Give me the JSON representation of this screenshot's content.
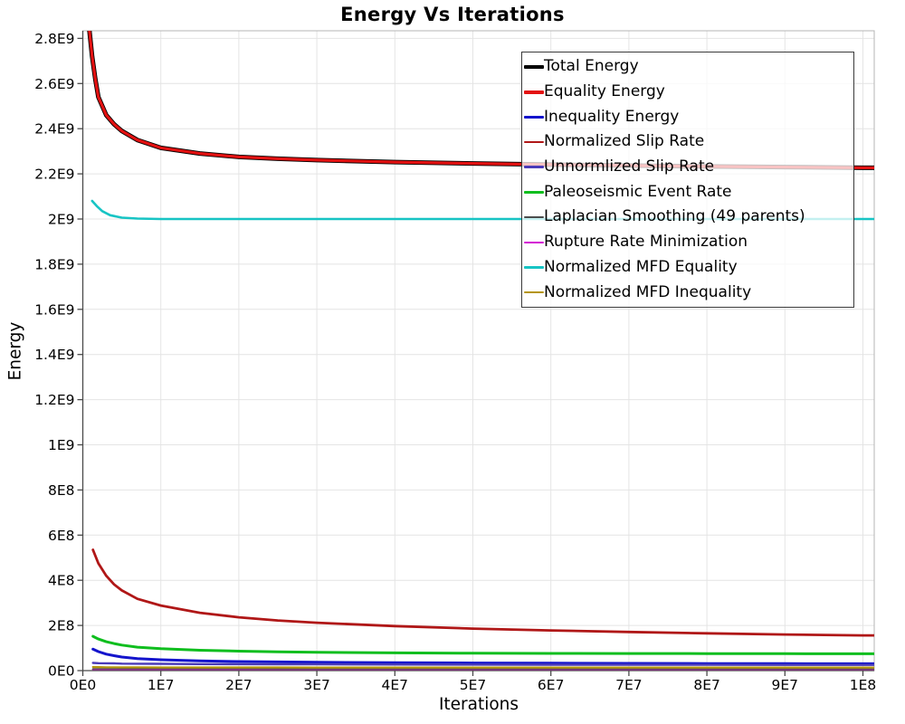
{
  "title": "Energy Vs Iterations",
  "axes": {
    "x_label": "Iterations",
    "y_label": "Energy"
  },
  "colors": {
    "background": "#ffffff",
    "grid": "#e4e4e4",
    "plot_border": "#b5b5b5",
    "axis_line": "#4a4a4a",
    "tick": "#4a4a4a",
    "text": "#000000",
    "legend_border": "#3a3a3a"
  },
  "chart_data": {
    "type": "line",
    "title": "Energy Vs Iterations",
    "xlabel": "Iterations",
    "ylabel": "Energy",
    "xlim": [
      0,
      101500000
    ],
    "ylim": [
      0,
      2830000000
    ],
    "grid": true,
    "legend_position": "top-right",
    "x_ticks": [
      {
        "label": "0E0",
        "value": 0
      },
      {
        "label": "1E7",
        "value": 10000000
      },
      {
        "label": "2E7",
        "value": 20000000
      },
      {
        "label": "3E7",
        "value": 30000000
      },
      {
        "label": "4E7",
        "value": 40000000
      },
      {
        "label": "5E7",
        "value": 50000000
      },
      {
        "label": "6E7",
        "value": 60000000
      },
      {
        "label": "7E7",
        "value": 70000000
      },
      {
        "label": "8E7",
        "value": 80000000
      },
      {
        "label": "9E7",
        "value": 90000000
      },
      {
        "label": "1E8",
        "value": 100000000
      }
    ],
    "y_ticks": [
      {
        "label": "0E0",
        "value": 0
      },
      {
        "label": "2E8",
        "value": 200000000
      },
      {
        "label": "4E8",
        "value": 400000000
      },
      {
        "label": "6E8",
        "value": 600000000
      },
      {
        "label": "8E8",
        "value": 800000000
      },
      {
        "label": "1E9",
        "value": 1000000000
      },
      {
        "label": "1.2E9",
        "value": 1200000000
      },
      {
        "label": "1.4E9",
        "value": 1400000000
      },
      {
        "label": "1.6E9",
        "value": 1600000000
      },
      {
        "label": "1.8E9",
        "value": 1800000000
      },
      {
        "label": "2E9",
        "value": 2000000000
      },
      {
        "label": "2.2E9",
        "value": 2200000000
      },
      {
        "label": "2.4E9",
        "value": 2400000000
      },
      {
        "label": "2.6E9",
        "value": 2600000000
      },
      {
        "label": "2.8E9",
        "value": 2800000000
      }
    ],
    "series": [
      {
        "name": "Total Energy",
        "color": "#000000",
        "width": 5,
        "swatch_height": 4.5,
        "x": [
          500000.0,
          800000.0,
          1200000.0,
          1600000.0,
          2000000.0,
          3000000.0,
          4000000.0,
          5000000.0,
          7000000.0,
          10000000.0,
          15000000.0,
          20000000.0,
          25000000.0,
          30000000.0,
          40000000.0,
          50000000.0,
          60000000.0,
          70000000.0,
          80000000.0,
          90000000.0,
          100000000.0,
          101500000.0
        ],
        "y": [
          2950000000.0,
          2850000000.0,
          2720000000.0,
          2620000000.0,
          2540000000.0,
          2460000000.0,
          2420000000.0,
          2390000000.0,
          2350000000.0,
          2315000000.0,
          2290000000.0,
          2275000000.0,
          2267000000.0,
          2261000000.0,
          2252000000.0,
          2246000000.0,
          2241000000.0,
          2237000000.0,
          2233000000.0,
          2230000000.0,
          2227000000.0,
          2227000000.0
        ]
      },
      {
        "name": "Equality Energy",
        "color": "#e31111",
        "width": 3.2,
        "swatch_height": 4,
        "x": [
          500000.0,
          800000.0,
          1200000.0,
          1600000.0,
          2000000.0,
          3000000.0,
          4000000.0,
          5000000.0,
          7000000.0,
          10000000.0,
          15000000.0,
          20000000.0,
          25000000.0,
          30000000.0,
          40000000.0,
          50000000.0,
          60000000.0,
          70000000.0,
          80000000.0,
          90000000.0,
          100000000.0,
          101500000.0
        ],
        "y": [
          2950000000.0,
          2850000000.0,
          2720000000.0,
          2620000000.0,
          2540000000.0,
          2460000000.0,
          2420000000.0,
          2390000000.0,
          2350000000.0,
          2315000000.0,
          2290000000.0,
          2275000000.0,
          2267000000.0,
          2261000000.0,
          2252000000.0,
          2246000000.0,
          2241000000.0,
          2237000000.0,
          2233000000.0,
          2230000000.0,
          2227000000.0,
          2227000000.0
        ]
      },
      {
        "name": "Inequality Energy",
        "color": "#1414cc",
        "width": 3,
        "swatch_height": 3,
        "x": [
          1300000.0,
          2000000.0,
          3000000.0,
          4000000.0,
          5000000.0,
          7000000.0,
          10000000.0,
          15000000.0,
          20000000.0,
          25000000.0,
          30000000.0,
          40000000.0,
          50000000.0,
          60000000.0,
          70000000.0,
          80000000.0,
          90000000.0,
          100000000.0,
          101500000.0
        ],
        "y": [
          95000000.0,
          84000000.0,
          73000000.0,
          66000000.0,
          60000000.0,
          53000000.0,
          48000000.0,
          43000000.0,
          40000000.0,
          38500000.0,
          37000000.0,
          35000000.0,
          33800000.0,
          32800000.0,
          32000000.0,
          31400000.0,
          30900000.0,
          30500000.0,
          30500000.0
        ]
      },
      {
        "name": "Normalized Slip Rate",
        "color": "#b01717",
        "width": 2.8,
        "swatch_height": 2.4,
        "x": [
          1300000.0,
          2000000.0,
          3000000.0,
          4000000.0,
          5000000.0,
          7000000.0,
          10000000.0,
          15000000.0,
          20000000.0,
          25000000.0,
          30000000.0,
          40000000.0,
          50000000.0,
          60000000.0,
          70000000.0,
          80000000.0,
          90000000.0,
          100000000.0,
          101500000.0
        ],
        "y": [
          535000000.0,
          475000000.0,
          420000000.0,
          382000000.0,
          355000000.0,
          318000000.0,
          288000000.0,
          256000000.0,
          236000000.0,
          222000000.0,
          212000000.0,
          197000000.0,
          186000000.0,
          178000000.0,
          171000000.0,
          165000000.0,
          160000000.0,
          156000000.0,
          156000000.0
        ]
      },
      {
        "name": "Unnormlized Slip Rate",
        "color": "#4a3ab8",
        "width": 2.4,
        "swatch_height": 2.4,
        "x": [
          1300000.0,
          2000000.0,
          3000000.0,
          4000000.0,
          5000000.0,
          7000000.0,
          10000000.0,
          15000000.0,
          20000000.0,
          25000000.0,
          30000000.0,
          40000000.0,
          50000000.0,
          60000000.0,
          70000000.0,
          80000000.0,
          90000000.0,
          100000000.0,
          101500000.0
        ],
        "y": [
          34000000.0,
          33000000.0,
          32500000.0,
          32000000.0,
          31000000.0,
          30500000.0,
          30000000.0,
          29000000.0,
          28500000.0,
          28000000.0,
          27600000.0,
          27000000.0,
          26500000.0,
          26100000.0,
          25800000.0,
          25500000.0,
          25300000.0,
          25100000.0,
          25100000.0
        ]
      },
      {
        "name": "Paleoseismic Event Rate",
        "color": "#0fbe1e",
        "width": 3,
        "swatch_height": 2.6,
        "x": [
          1300000.0,
          2000000.0,
          3000000.0,
          4000000.0,
          5000000.0,
          7000000.0,
          10000000.0,
          15000000.0,
          20000000.0,
          25000000.0,
          30000000.0,
          40000000.0,
          50000000.0,
          60000000.0,
          70000000.0,
          80000000.0,
          90000000.0,
          100000000.0,
          101500000.0
        ],
        "y": [
          152000000.0,
          140000000.0,
          128000000.0,
          120000000.0,
          113000000.0,
          104000000.0,
          97000000.0,
          90000000.0,
          86000000.0,
          83000000.0,
          81000000.0,
          78500000.0,
          77000000.0,
          76200000.0,
          75600000.0,
          75200000.0,
          74800000.0,
          74500000.0,
          74500000.0
        ]
      },
      {
        "name": "Laplacian Smoothing (49 parents)",
        "color": "#4d4d4d",
        "width": 2.2,
        "swatch_height": 2.2,
        "x": [
          1300000.0,
          2000000.0,
          3000000.0,
          4000000.0,
          5000000.0,
          7000000.0,
          10000000.0,
          15000000.0,
          20000000.0,
          25000000.0,
          30000000.0,
          40000000.0,
          50000000.0,
          60000000.0,
          70000000.0,
          80000000.0,
          90000000.0,
          100000000.0,
          101500000.0
        ],
        "y": [
          7000000.0,
          6800000.0,
          6600000.0,
          6500000.0,
          6300000.0,
          6200000.0,
          6100000.0,
          6000000.0,
          5900000.0,
          5850000.0,
          5800000.0,
          5700000.0,
          5650000.0,
          5600000.0,
          5600000.0,
          5550000.0,
          5550000.0,
          5500000.0,
          5500000.0
        ]
      },
      {
        "name": "Rupture Rate Minimization",
        "color": "#d411d4",
        "width": 1.8,
        "swatch_height": 2,
        "x": [
          1300000.0,
          2000000.0,
          3000000.0,
          4000000.0,
          5000000.0,
          7000000.0,
          10000000.0,
          15000000.0,
          20000000.0,
          25000000.0,
          30000000.0,
          40000000.0,
          50000000.0,
          60000000.0,
          70000000.0,
          80000000.0,
          90000000.0,
          100000000.0,
          101500000.0
        ],
        "y": [
          2200000.0,
          2100000.0,
          2100000.0,
          2000000.0,
          2000000.0,
          2000000.0,
          1900000.0,
          1900000.0,
          1900000.0,
          1800000.0,
          1800000.0,
          1800000.0,
          1700000.0,
          1700000.0,
          1700000.0,
          1600000.0,
          1600000.0,
          1600000.0,
          1600000.0
        ]
      },
      {
        "name": "Normalized MFD Equality",
        "color": "#17c4c4",
        "width": 2.6,
        "swatch_height": 2.4,
        "x": [
          1200000.0,
          1800000.0,
          2500000.0,
          3500000.0,
          5000000.0,
          7000000.0,
          10000000.0,
          20000000.0,
          30000000.0,
          50000000.0,
          70000000.0,
          100000000.0,
          101500000.0
        ],
        "y": [
          2080000000.0,
          2057000000.0,
          2035000000.0,
          2017000000.0,
          2006000000.0,
          2002000000.0,
          2000000000.0,
          2000000000.0,
          2000000000.0,
          2000000000.0,
          2000000000.0,
          2000000000.0,
          2000000000.0
        ]
      },
      {
        "name": "Normalized MFD Inequality",
        "color": "#b5950f",
        "width": 2.2,
        "swatch_height": 2.2,
        "x": [
          1300000.0,
          2000000.0,
          3000000.0,
          4000000.0,
          5000000.0,
          7000000.0,
          10000000.0,
          15000000.0,
          20000000.0,
          25000000.0,
          30000000.0,
          40000000.0,
          50000000.0,
          60000000.0,
          70000000.0,
          80000000.0,
          90000000.0,
          100000000.0,
          101500000.0
        ],
        "y": [
          16000000.0,
          15500000.0,
          15000000.0,
          15000000.0,
          14500000.0,
          14500000.0,
          14000000.0,
          14000000.0,
          14000000.0,
          14000000.0,
          13800000.0,
          13800000.0,
          13600000.0,
          13600000.0,
          13500000.0,
          13500000.0,
          13500000.0,
          13500000.0,
          13500000.0
        ]
      }
    ]
  }
}
